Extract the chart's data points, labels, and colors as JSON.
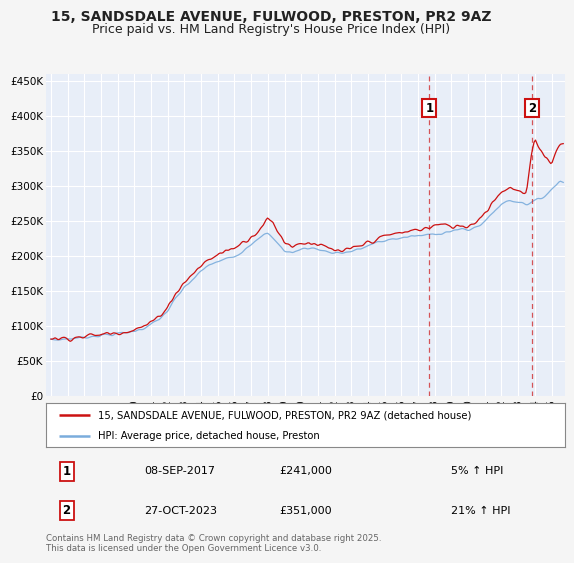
{
  "title": "15, SANDSDALE AVENUE, FULWOOD, PRESTON, PR2 9AZ",
  "subtitle": "Price paid vs. HM Land Registry's House Price Index (HPI)",
  "ylabel_ticks": [
    "£0",
    "£50K",
    "£100K",
    "£150K",
    "£200K",
    "£250K",
    "£300K",
    "£350K",
    "£400K",
    "£450K"
  ],
  "ytick_values": [
    0,
    50000,
    100000,
    150000,
    200000,
    250000,
    300000,
    350000,
    400000,
    450000
  ],
  "ylim": [
    0,
    460000
  ],
  "xlim_start": 1994.7,
  "xlim_end": 2025.8,
  "x_years": [
    1995,
    1996,
    1997,
    1998,
    1999,
    2000,
    2001,
    2002,
    2003,
    2004,
    2005,
    2006,
    2007,
    2008,
    2009,
    2010,
    2011,
    2012,
    2013,
    2014,
    2015,
    2016,
    2017,
    2018,
    2019,
    2020,
    2021,
    2022,
    2023,
    2024,
    2025
  ],
  "marker1_x": 2017.68,
  "marker1_y": 241000,
  "marker1_label": "1",
  "marker1_date": "08-SEP-2017",
  "marker1_price": "£241,000",
  "marker1_hpi": "5% ↑ HPI",
  "marker2_x": 2023.82,
  "marker2_y": 351000,
  "marker2_label": "2",
  "marker2_date": "27-OCT-2023",
  "marker2_price": "£351,000",
  "marker2_hpi": "21% ↑ HPI",
  "hpi_color": "#7aacdc",
  "price_color": "#cc1111",
  "dashed_color": "#cc1111",
  "bg_chart": "#e8eef8",
  "bg_fig": "#f5f5f5",
  "grid_color": "#ffffff",
  "legend_line1": "15, SANDSDALE AVENUE, FULWOOD, PRESTON, PR2 9AZ (detached house)",
  "legend_line2": "HPI: Average price, detached house, Preston",
  "footer": "Contains HM Land Registry data © Crown copyright and database right 2025.\nThis data is licensed under the Open Government Licence v3.0.",
  "title_fontsize": 10,
  "subtitle_fontsize": 9
}
